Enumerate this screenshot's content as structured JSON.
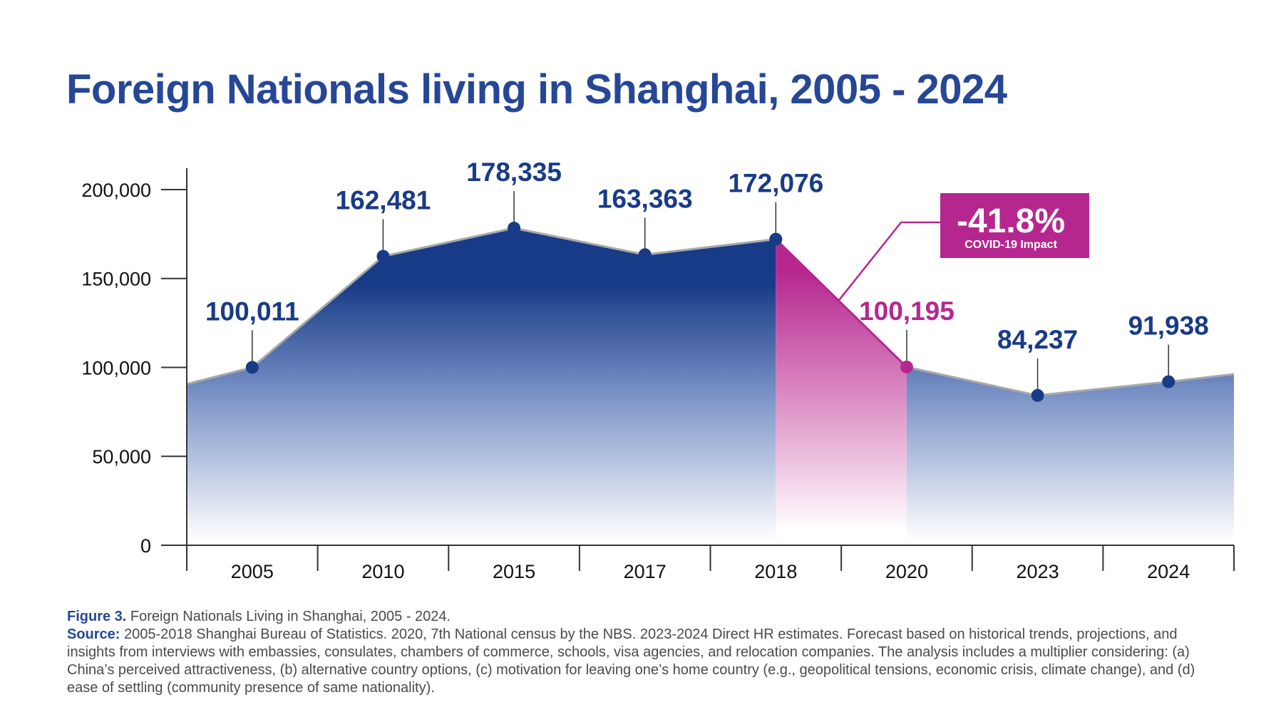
{
  "chart_data": {
    "type": "area",
    "title": "Foreign Nationals living in Shanghai, 2005 - 2024",
    "categories": [
      "2005",
      "2010",
      "2015",
      "2017",
      "2018",
      "2020",
      "2023",
      "2024"
    ],
    "values": [
      100011,
      162481,
      178335,
      163363,
      172076,
      100195,
      84237,
      91938
    ],
    "value_labels": [
      "100,011",
      "162,481",
      "178,335",
      "163,363",
      "172,076",
      "100,195",
      "84,237",
      "91,938"
    ],
    "y_ticks": [
      0,
      50000,
      100000,
      150000,
      200000
    ],
    "y_tick_labels": [
      "0",
      "50,000",
      "100,000",
      "150,000",
      "200,000"
    ],
    "ylim": [
      0,
      212000
    ],
    "xlabel": "",
    "ylabel": "",
    "grid": false,
    "highlight": {
      "from_category": "2018",
      "to_category": "2020",
      "value": "-41.8%",
      "label": "COVID-19 Impact"
    },
    "colors": {
      "primary": "#183b87",
      "accent": "#b5278f",
      "outline": "#a8a8a8",
      "axis": "#333333",
      "title": "#264796"
    }
  },
  "caption": {
    "figure_label": "Figure 3.",
    "figure_text": " Foreign Nationals Living in Shanghai, 2005 - 2024.",
    "source_label": "Source:",
    "source_text": " 2005-2018 Shanghai Bureau of Statistics. 2020, 7th National census by the NBS. 2023-2024 Direct HR estimates. Forecast based on historical trends, projections, and insights from interviews with embassies, consulates, chambers of commerce, schools, visa agencies, and relocation companies. The analysis includes a multiplier considering: (a) China’s perceived attractiveness, (b) alternative country options, (c) motivation for leaving one’s home country (e.g., geopolitical tensions, economic crisis, climate change), and (d) ease of settling (community presence of same nationality)."
  }
}
